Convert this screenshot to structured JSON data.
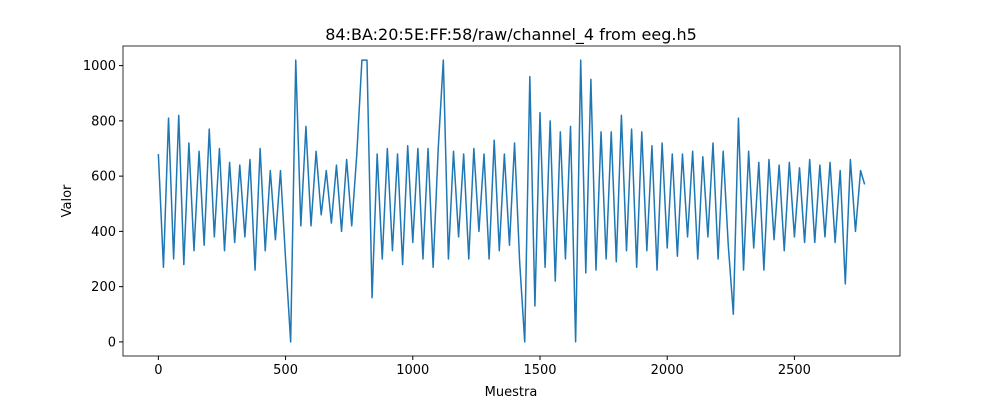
{
  "chart_data": {
    "type": "line",
    "title": "84:BA:20:5E:FF:58/raw/channel_4 from eeg.h5",
    "xlabel": "Muestra",
    "ylabel": "Valor",
    "x": [
      0,
      20,
      40,
      60,
      80,
      100,
      120,
      140,
      160,
      180,
      200,
      220,
      240,
      260,
      280,
      300,
      320,
      340,
      360,
      380,
      400,
      420,
      440,
      460,
      480,
      500,
      520,
      540,
      560,
      580,
      600,
      620,
      640,
      660,
      680,
      700,
      720,
      740,
      760,
      780,
      800,
      820,
      840,
      860,
      880,
      900,
      920,
      940,
      960,
      980,
      1000,
      1020,
      1040,
      1060,
      1080,
      1100,
      1120,
      1140,
      1160,
      1180,
      1200,
      1220,
      1240,
      1260,
      1280,
      1300,
      1320,
      1340,
      1360,
      1380,
      1400,
      1420,
      1440,
      1460,
      1480,
      1500,
      1520,
      1540,
      1560,
      1580,
      1600,
      1620,
      1640,
      1660,
      1680,
      1700,
      1720,
      1740,
      1760,
      1780,
      1800,
      1820,
      1840,
      1860,
      1880,
      1900,
      1920,
      1940,
      1960,
      1980,
      2000,
      2020,
      2040,
      2060,
      2080,
      2100,
      2120,
      2140,
      2160,
      2180,
      2200,
      2220,
      2240,
      2260,
      2280,
      2300,
      2320,
      2340,
      2360,
      2380,
      2400,
      2420,
      2440,
      2460,
      2480,
      2500,
      2520,
      2540,
      2560,
      2580,
      2600,
      2620,
      2640,
      2660,
      2680,
      2700,
      2720,
      2740,
      2760,
      2776
    ],
    "series": [
      {
        "color": "#1f77b4",
        "values": [
          680,
          270,
          810,
          300,
          820,
          280,
          720,
          330,
          690,
          350,
          770,
          380,
          700,
          330,
          650,
          360,
          640,
          380,
          660,
          260,
          700,
          330,
          620,
          370,
          620,
          300,
          0,
          1020,
          420,
          780,
          420,
          690,
          460,
          620,
          430,
          640,
          400,
          660,
          420,
          680,
          1020,
          1020,
          160,
          680,
          300,
          700,
          330,
          680,
          280,
          710,
          360,
          700,
          300,
          700,
          270,
          700,
          1020,
          300,
          690,
          380,
          680,
          300,
          700,
          400,
          680,
          300,
          730,
          330,
          680,
          350,
          720,
          290,
          0,
          960,
          130,
          830,
          270,
          800,
          220,
          760,
          300,
          780,
          0,
          1020,
          250,
          950,
          260,
          760,
          300,
          760,
          290,
          820,
          330,
          770,
          270,
          760,
          330,
          710,
          260,
          720,
          340,
          680,
          310,
          680,
          380,
          690,
          300,
          670,
          380,
          720,
          300,
          690,
          350,
          100,
          810,
          260,
          690,
          340,
          650,
          260,
          660,
          370,
          640,
          330,
          650,
          380,
          630,
          360,
          660,
          360,
          640,
          380,
          650,
          360,
          620,
          210,
          660,
          400,
          620,
          570
        ]
      }
    ],
    "xlim": [
      -139,
      2915
    ],
    "ylim": [
      -51,
      1071
    ],
    "xticks": [
      0,
      500,
      1000,
      1500,
      2000,
      2500
    ],
    "yticks": [
      0,
      200,
      400,
      600,
      800,
      1000
    ]
  }
}
